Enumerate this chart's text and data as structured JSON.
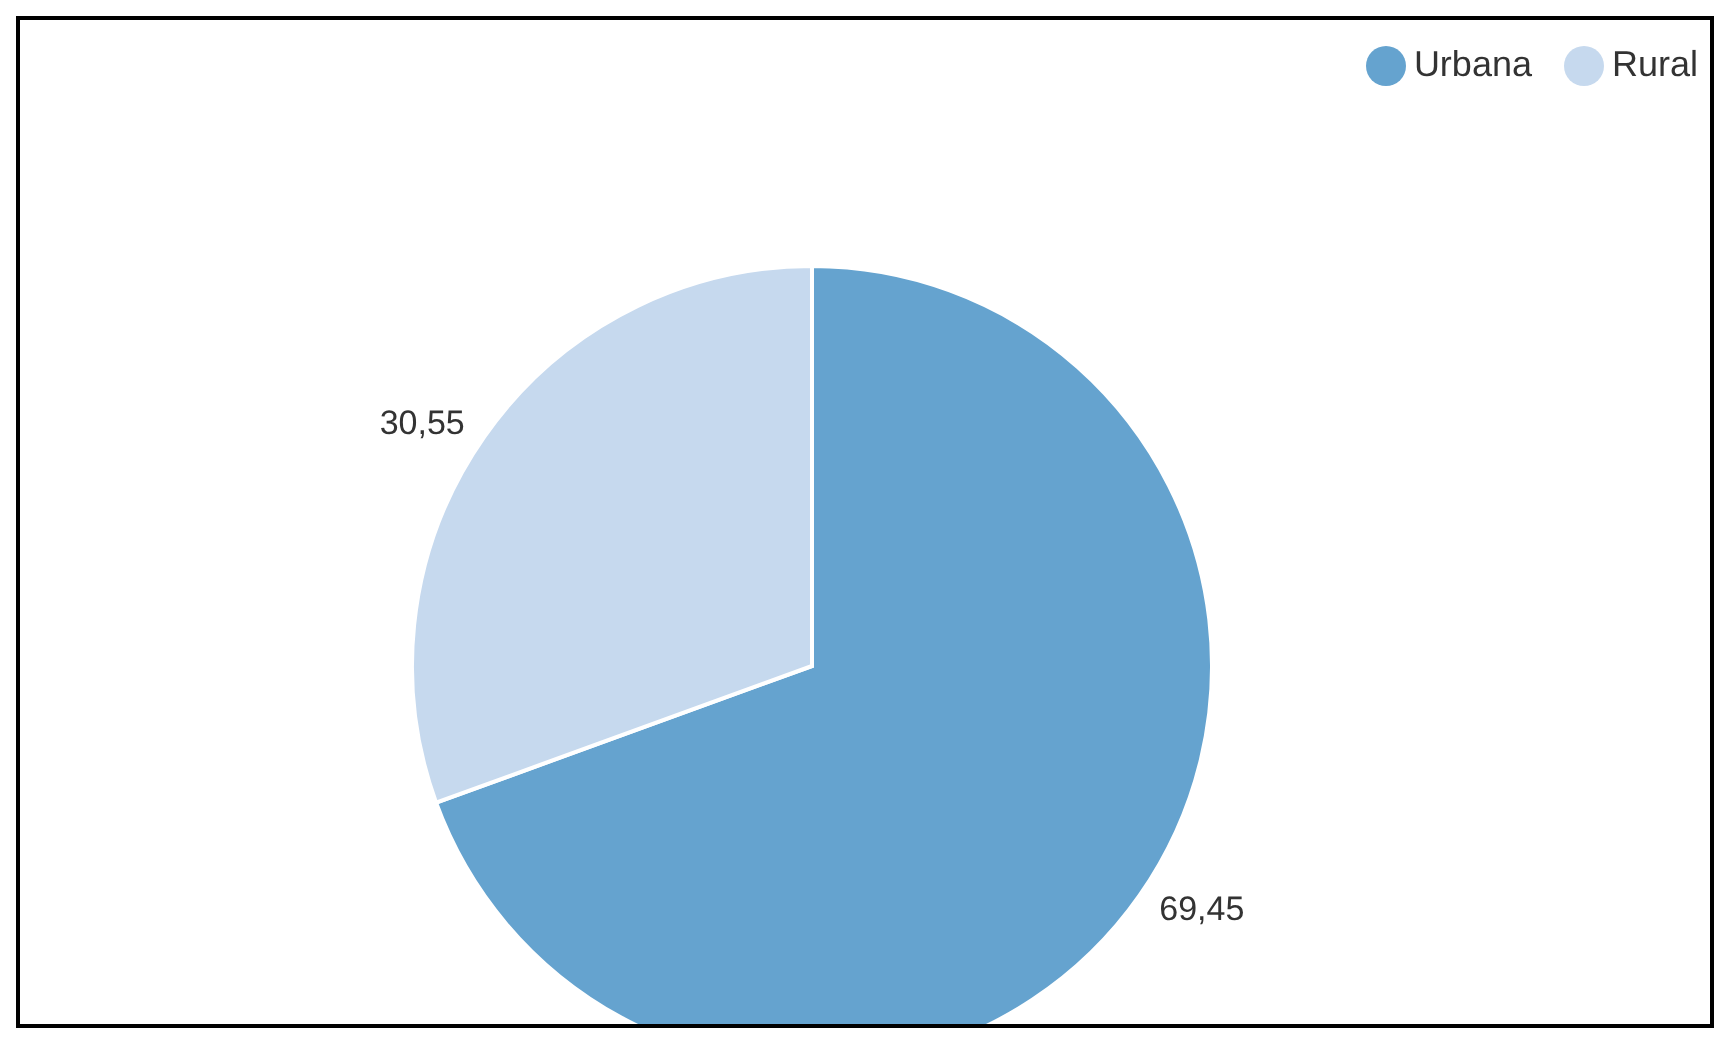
{
  "chart_data": {
    "type": "pie",
    "categories": [
      "Urbana",
      "Rural"
    ],
    "values": [
      69.45,
      30.55
    ],
    "colors": [
      "#65a3cf",
      "#c6d9ee"
    ],
    "value_labels": [
      "69,45",
      "30,55"
    ],
    "legend": "top right"
  }
}
